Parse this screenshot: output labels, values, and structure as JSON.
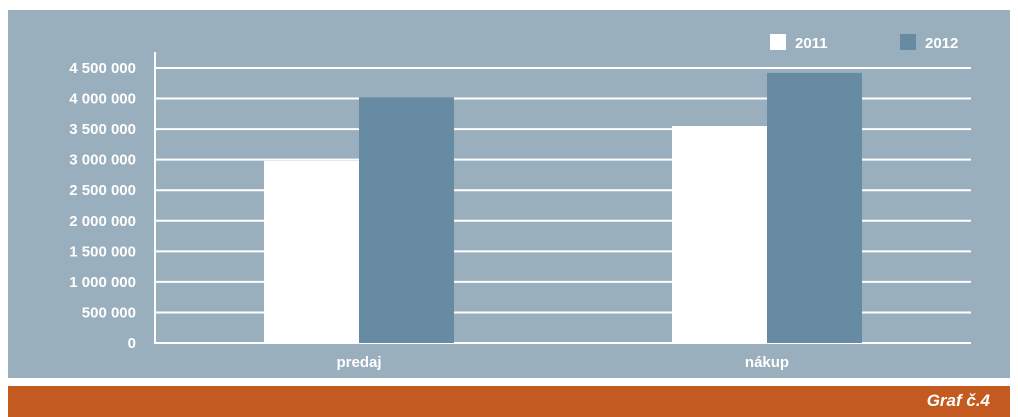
{
  "colors": {
    "panel_background": "#9aafbd",
    "series_2011": "#ffffff",
    "series_2012": "#678ba3",
    "gridline": "#ffffff",
    "text": "#ffffff",
    "footer_band": "#c35a1f"
  },
  "footer": {
    "caption": "Graf č.4"
  },
  "chart_data": {
    "type": "bar",
    "title": "",
    "xlabel": "",
    "ylabel": "",
    "categories": [
      "predaj",
      "nákup"
    ],
    "series": [
      {
        "name": "2011",
        "color": "#ffffff",
        "values": [
          2980000,
          3550000
        ]
      },
      {
        "name": "2012",
        "color": "#678ba3",
        "values": [
          4020000,
          4420000
        ]
      }
    ],
    "ylim": [
      0,
      4500000
    ],
    "y_ticks": [
      0,
      500000,
      1000000,
      1500000,
      2000000,
      2500000,
      3000000,
      3500000,
      4000000,
      4500000
    ],
    "y_tick_labels": [
      "0",
      "500 000",
      "1 000 000",
      "1 500 000",
      "2 000 000",
      "2 500 000",
      "3 000 000",
      "3 500 000",
      "4 000 000",
      "4 500 000"
    ],
    "grid": true,
    "legend_position": "top-right"
  }
}
